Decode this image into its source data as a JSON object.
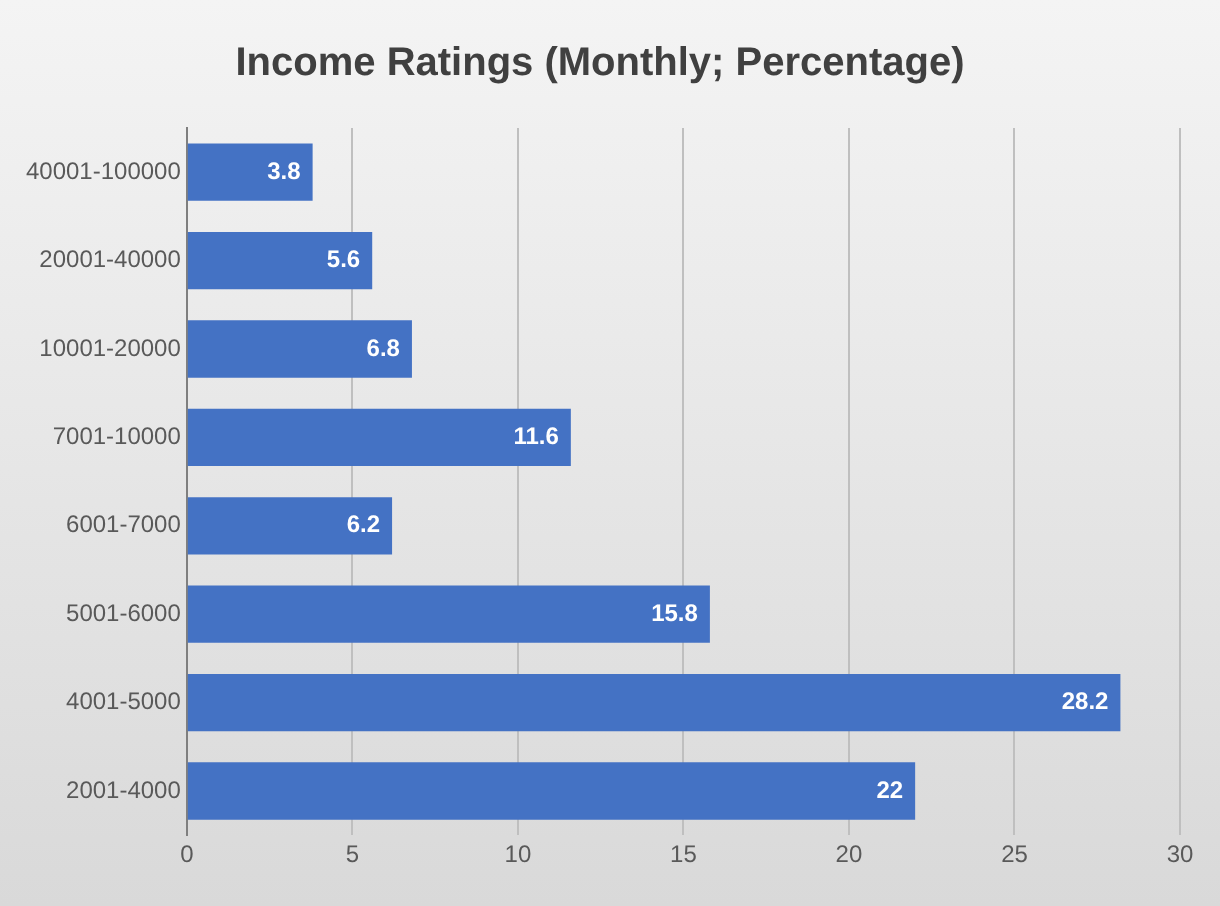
{
  "chart_data": {
    "type": "bar",
    "orientation": "horizontal",
    "title": "Income Ratings (Monthly; Percentage)",
    "categories": [
      "40001-100000",
      "20001-40000",
      "10001-20000",
      "7001-10000",
      "6001-7000",
      "5001-6000",
      "4001-5000",
      "2001-4000"
    ],
    "values": [
      3.8,
      5.6,
      6.8,
      11.6,
      6.2,
      15.8,
      28.2,
      22
    ],
    "color": "#4472c4",
    "xlim": [
      0,
      30
    ],
    "xticks": [
      0,
      5,
      10,
      15,
      20,
      25,
      30
    ],
    "grid": "x",
    "data_labels": true
  }
}
